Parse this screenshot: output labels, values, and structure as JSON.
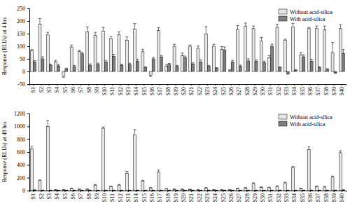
{
  "chart_data": [
    {
      "type": "bar",
      "y_label": "Response (RLUs) at 4 hrs",
      "categories": [
        "S1",
        "S2",
        "S3",
        "S4",
        "S5",
        "S6",
        "S7",
        "S8",
        "S9",
        "S10",
        "S11",
        "S12",
        "S13",
        "S14",
        "S15",
        "S16",
        "S17",
        "S18",
        "S19",
        "S20",
        "S21",
        "S22",
        "S23",
        "S24",
        "S25",
        "S26",
        "S27",
        "S28",
        "S29",
        "S30",
        "S31",
        "S32",
        "S33",
        "S34",
        "S35",
        "S36",
        "S37",
        "S38",
        "S39",
        "S40"
      ],
      "series": [
        {
          "name": "Without acid-silica",
          "color": "#e6e6e6",
          "values": [
            82,
            188,
            145,
            38,
            -18,
            97,
            80,
            157,
            143,
            160,
            130,
            145,
            123,
            168,
            78,
            -15,
            162,
            20,
            100,
            63,
            100,
            92,
            148,
            100,
            87,
            3,
            167,
            180,
            170,
            120,
            55,
            175,
            123,
            176,
            65,
            170,
            170,
            165,
            75,
            170
          ],
          "errors": [
            5,
            22,
            10,
            6,
            5,
            8,
            4,
            20,
            12,
            15,
            8,
            12,
            14,
            22,
            10,
            5,
            12,
            6,
            8,
            10,
            5,
            10,
            30,
            8,
            12,
            4,
            15,
            12,
            10,
            15,
            8,
            12,
            5,
            15,
            10,
            5,
            10,
            15,
            40,
            15
          ]
        },
        {
          "name": "With acid-silica",
          "color": "#7f7f7f",
          "values": [
            38,
            50,
            25,
            22,
            10,
            18,
            70,
            25,
            28,
            38,
            60,
            25,
            28,
            40,
            15,
            50,
            58,
            28,
            20,
            55,
            30,
            38,
            20,
            12,
            85,
            38,
            20,
            42,
            40,
            35,
            100,
            15,
            -8,
            5,
            58,
            40,
            15,
            8,
            -5,
            72
          ],
          "errors": [
            5,
            8,
            4,
            4,
            3,
            6,
            5,
            5,
            5,
            6,
            8,
            4,
            5,
            8,
            4,
            6,
            5,
            4,
            4,
            6,
            4,
            8,
            4,
            3,
            12,
            6,
            5,
            8,
            6,
            6,
            8,
            4,
            3,
            3,
            8,
            8,
            4,
            3,
            3,
            15
          ]
        }
      ],
      "ylim": [
        -50,
        250
      ],
      "yticks": [
        -50,
        0,
        50,
        100,
        150,
        200,
        250
      ],
      "legend": "upper right",
      "grid": false
    },
    {
      "type": "bar",
      "y_label": "Response (RLUs) at 48 hrs",
      "categories": [
        "S1",
        "S2",
        "S3",
        "S4",
        "S5",
        "S6",
        "S7",
        "S8",
        "S9",
        "S10",
        "S11",
        "S12",
        "S13",
        "S14",
        "S15",
        "S16",
        "S17",
        "S18",
        "S19",
        "S20",
        "S21",
        "S22",
        "S23",
        "S24",
        "S25",
        "S26",
        "S27",
        "S28",
        "S29",
        "S30",
        "S31",
        "S32",
        "S33",
        "S34",
        "S35",
        "S36",
        "S37",
        "S38",
        "S39",
        "S40"
      ],
      "series": [
        {
          "name": "Without acid-silica",
          "color": "#e6e6e6",
          "values": [
            650,
            155,
            1000,
            10,
            10,
            30,
            20,
            20,
            85,
            970,
            60,
            85,
            270,
            870,
            150,
            40,
            290,
            25,
            20,
            20,
            15,
            10,
            40,
            10,
            10,
            10,
            30,
            40,
            110,
            50,
            45,
            65,
            120,
            360,
            30,
            640,
            60,
            55,
            210,
            590
          ],
          "errors": [
            40,
            10,
            90,
            5,
            5,
            8,
            5,
            5,
            10,
            20,
            10,
            10,
            30,
            80,
            10,
            8,
            30,
            5,
            5,
            5,
            5,
            5,
            8,
            5,
            5,
            5,
            8,
            8,
            10,
            8,
            8,
            10,
            10,
            15,
            8,
            40,
            10,
            10,
            15,
            30
          ]
        },
        {
          "name": "With acid-silica",
          "color": "#7f7f7f",
          "values": [
            10,
            5,
            5,
            5,
            5,
            5,
            5,
            5,
            5,
            5,
            5,
            5,
            5,
            5,
            5,
            5,
            5,
            5,
            5,
            5,
            5,
            5,
            5,
            5,
            5,
            5,
            5,
            5,
            5,
            5,
            5,
            5,
            5,
            5,
            5,
            5,
            5,
            5,
            5,
            10
          ],
          "errors": [
            3,
            2,
            2,
            2,
            2,
            2,
            2,
            2,
            2,
            2,
            2,
            2,
            2,
            2,
            2,
            2,
            2,
            2,
            2,
            2,
            2,
            2,
            2,
            2,
            2,
            2,
            2,
            2,
            2,
            2,
            2,
            2,
            2,
            2,
            2,
            2,
            2,
            2,
            2,
            3
          ]
        }
      ],
      "ylim": [
        0,
        1200
      ],
      "yticks": [
        0,
        200,
        400,
        600,
        800,
        1000,
        1200
      ],
      "legend": "upper right",
      "grid": false
    }
  ]
}
